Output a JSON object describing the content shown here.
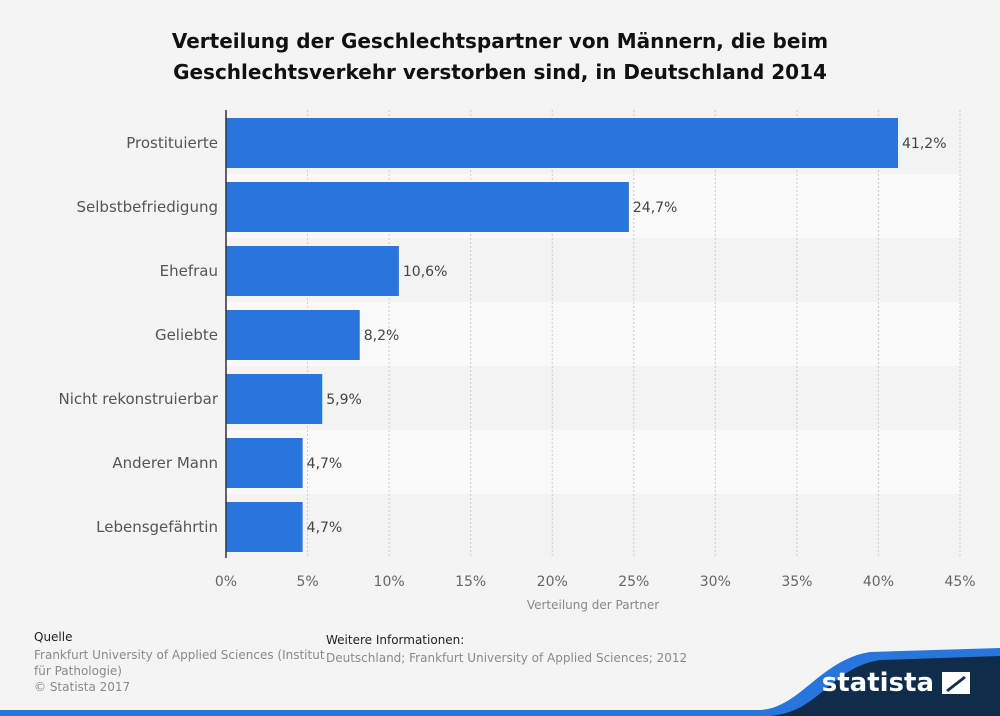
{
  "title_line1": "Verteilung der Geschlechtspartner von Männern, die beim",
  "title_line2": "Geschlechtsverkehr verstorben sind, in Deutschland 2014",
  "chart_data": {
    "type": "bar",
    "orientation": "horizontal",
    "title": "Verteilung der Geschlechtspartner von Männern, die beim Geschlechtsverkehr verstorben sind, in Deutschland 2014",
    "categories": [
      "Prostituierte",
      "Selbstbefriedigung",
      "Ehefrau",
      "Geliebte",
      "Nicht rekonstruierbar",
      "Anderer Mann",
      "Lebensgefährtin"
    ],
    "values": [
      41.2,
      24.7,
      10.6,
      8.2,
      5.9,
      4.7,
      4.7
    ],
    "value_labels": [
      "41,2%",
      "24,7%",
      "10,6%",
      "8,2%",
      "5,9%",
      "4,7%",
      "4,7%"
    ],
    "xlabel": "Verteilung der Partner",
    "ylabel": "",
    "xlim": [
      0,
      45
    ],
    "xticks": [
      0,
      5,
      10,
      15,
      20,
      25,
      30,
      35,
      40,
      45
    ],
    "xtick_labels": [
      "0%",
      "5%",
      "10%",
      "15%",
      "20%",
      "25%",
      "30%",
      "35%",
      "40%",
      "45%"
    ],
    "grid": true,
    "bar_color": "#2876dd"
  },
  "footer": {
    "source_heading": "Quelle",
    "source_text": "Frankfurt University of Applied Sciences (Institut für Pathologie)",
    "copyright": "© Statista 2017",
    "info_heading": "Weitere Informationen:",
    "info_text": "Deutschland; Frankfurt University of Applied Sciences; 2012",
    "logo_text": "statista"
  }
}
